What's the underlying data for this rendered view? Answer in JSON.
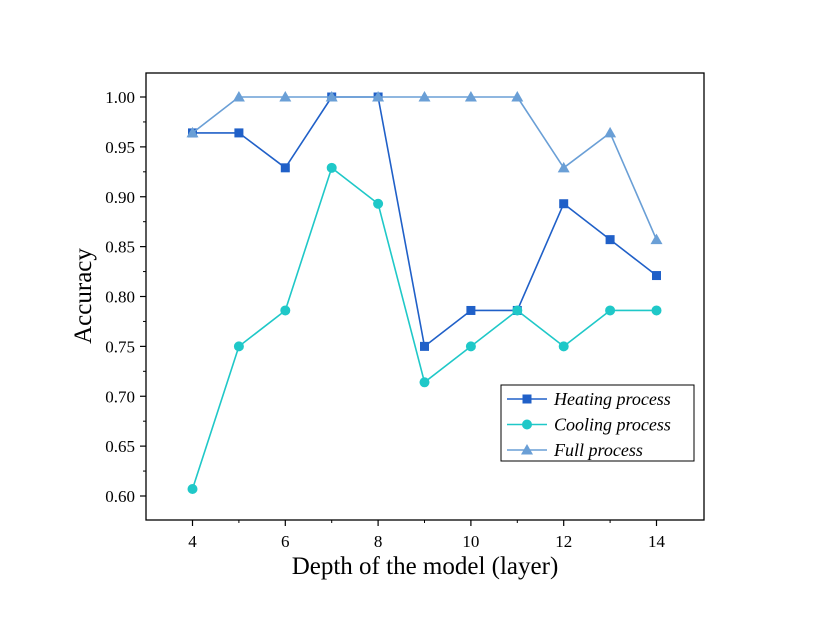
{
  "chart_data": {
    "type": "line",
    "title": "",
    "xlabel": "Depth of the model (layer)",
    "ylabel": "Accuracy",
    "x": [
      4,
      5,
      6,
      7,
      8,
      9,
      10,
      11,
      12,
      13,
      14
    ],
    "xlim": [
      3,
      15
    ],
    "ylim": [
      0.575,
      1.025
    ],
    "xticks": [
      4,
      6,
      8,
      10,
      12,
      14
    ],
    "yticks": [
      0.6,
      0.65,
      0.7,
      0.75,
      0.8,
      0.85,
      0.9,
      0.95,
      1.0
    ],
    "grid": false,
    "legend_position": "bottom-right",
    "series": [
      {
        "name": "Heating process",
        "marker": "square",
        "color": "#2060c8",
        "values": [
          0.964,
          0.964,
          0.929,
          1.0,
          1.0,
          0.75,
          0.786,
          0.786,
          0.893,
          0.857,
          0.821
        ]
      },
      {
        "name": "Cooling process",
        "marker": "circle",
        "color": "#1fc8c8",
        "values": [
          0.607,
          0.75,
          0.786,
          0.929,
          0.893,
          0.714,
          0.75,
          0.786,
          0.75,
          0.786,
          0.786
        ]
      },
      {
        "name": "Full process",
        "marker": "triangle",
        "color": "#6a9fd6",
        "values": [
          0.964,
          1.0,
          1.0,
          1.0,
          1.0,
          1.0,
          1.0,
          1.0,
          0.929,
          0.964,
          0.857
        ]
      }
    ]
  }
}
